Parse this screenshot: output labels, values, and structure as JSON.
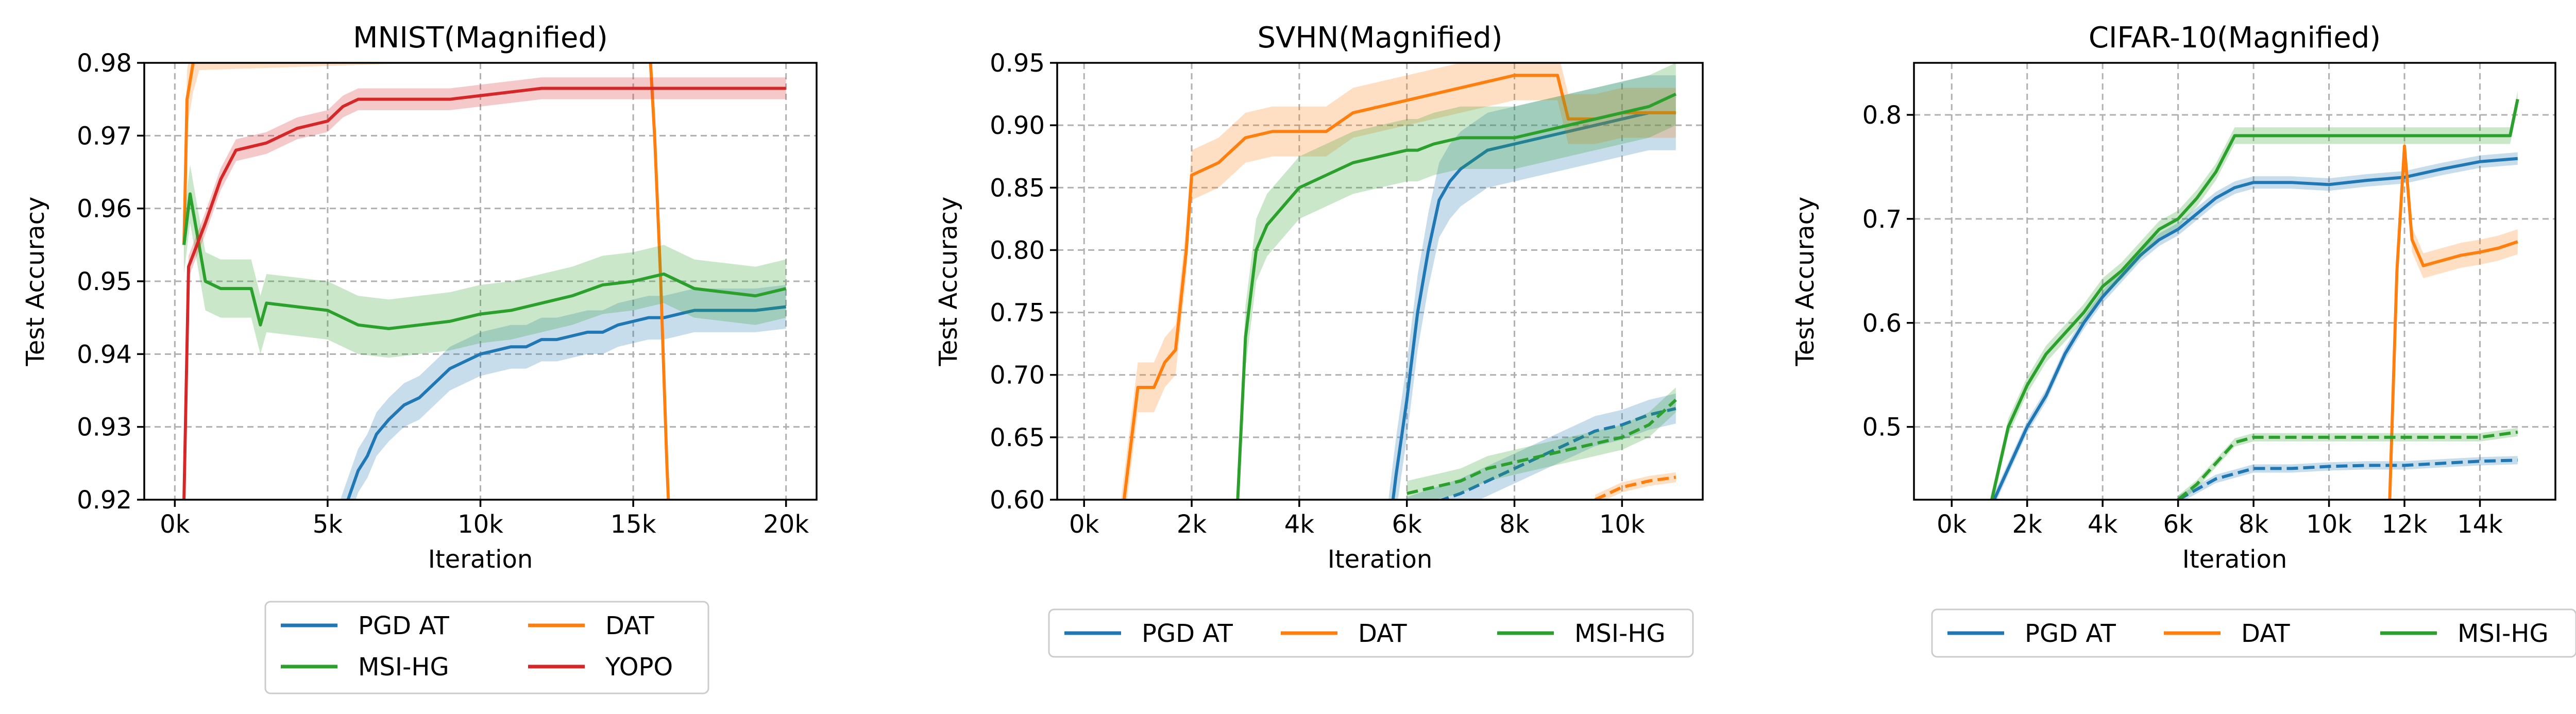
{
  "colors": {
    "PGD AT": "#1f77b4",
    "DAT": "#ff7f0e",
    "MSI-HG": "#2ca02c",
    "YOPO": "#d62728"
  },
  "chart_data": [
    {
      "type": "line",
      "title": "MNIST(Magnified)",
      "xlabel": "Iteration",
      "ylabel": "Test Accuracy",
      "xlim": [
        -1000,
        21000
      ],
      "ylim": [
        0.92,
        0.98
      ],
      "xticks": [
        0,
        5000,
        10000,
        15000,
        20000
      ],
      "xtick_labels": [
        "0k",
        "5k",
        "10k",
        "15k",
        "20k"
      ],
      "yticks": [
        0.92,
        0.93,
        0.94,
        0.95,
        0.96,
        0.97,
        0.98
      ],
      "ytick_labels": [
        "0.92",
        "0.93",
        "0.94",
        "0.95",
        "0.96",
        "0.97",
        "0.98"
      ],
      "grid": true,
      "legend": {
        "placement": "below",
        "columns": 2,
        "entries": [
          "PGD AT",
          "DAT",
          "MSI-HG",
          "YOPO"
        ]
      },
      "series": [
        {
          "name": "PGD AT",
          "style": "solid",
          "band": 0.003,
          "x": [
            5000,
            5500,
            6000,
            6300,
            6600,
            7000,
            7500,
            8000,
            8500,
            9000,
            9500,
            10000,
            10500,
            11000,
            11500,
            12000,
            12500,
            13000,
            13500,
            14000,
            14500,
            15000,
            15500,
            16000,
            16500,
            17000,
            18000,
            19000,
            20000
          ],
          "y": [
            0.912,
            0.918,
            0.924,
            0.926,
            0.929,
            0.931,
            0.933,
            0.934,
            0.936,
            0.938,
            0.939,
            0.94,
            0.9405,
            0.941,
            0.941,
            0.942,
            0.942,
            0.9425,
            0.943,
            0.943,
            0.944,
            0.9445,
            0.945,
            0.945,
            0.9455,
            0.946,
            0.946,
            0.946,
            0.9465
          ]
        },
        {
          "name": "DAT",
          "style": "solid",
          "band": 0.004,
          "x": [
            300,
            400,
            600,
            800,
            15500,
            15700,
            15900,
            16100,
            16300
          ],
          "y": [
            0.955,
            0.975,
            0.98,
            0.983,
            0.985,
            0.97,
            0.95,
            0.925,
            0.905
          ]
        },
        {
          "name": "MSI-HG",
          "style": "solid",
          "band": 0.004,
          "x": [
            300,
            500,
            1000,
            1500,
            2500,
            2800,
            3000,
            4000,
            5000,
            6000,
            7000,
            8000,
            9000,
            10000,
            11000,
            12000,
            13000,
            14000,
            15000,
            16000,
            17000,
            18000,
            19000,
            20000
          ],
          "y": [
            0.955,
            0.962,
            0.95,
            0.949,
            0.949,
            0.944,
            0.947,
            0.9465,
            0.946,
            0.944,
            0.9435,
            0.944,
            0.9445,
            0.9455,
            0.946,
            0.947,
            0.948,
            0.9495,
            0.95,
            0.951,
            0.949,
            0.9485,
            0.948,
            0.949
          ]
        },
        {
          "name": "YOPO",
          "style": "solid",
          "band": 0.0015,
          "x": [
            300,
            450,
            1000,
            1500,
            2000,
            2500,
            3000,
            3500,
            4000,
            4500,
            5000,
            5500,
            6000,
            7000,
            8000,
            9000,
            10000,
            11000,
            12000,
            13000,
            14000,
            15000,
            16000,
            17000,
            18000,
            19000,
            20000
          ],
          "y": [
            0.92,
            0.952,
            0.958,
            0.964,
            0.968,
            0.9685,
            0.969,
            0.97,
            0.971,
            0.9715,
            0.972,
            0.974,
            0.975,
            0.975,
            0.975,
            0.975,
            0.9755,
            0.976,
            0.9765,
            0.9765,
            0.9765,
            0.9765,
            0.9765,
            0.9765,
            0.9765,
            0.9765,
            0.9765
          ]
        }
      ]
    },
    {
      "type": "line",
      "title": "SVHN(Magnified)",
      "xlabel": "Iteration",
      "ylabel": "Test Accuracy",
      "xlim": [
        -500,
        11500
      ],
      "ylim": [
        0.6,
        0.95
      ],
      "xticks": [
        0,
        2000,
        4000,
        6000,
        8000,
        10000
      ],
      "xtick_labels": [
        "0k",
        "2k",
        "4k",
        "6k",
        "8k",
        "10k"
      ],
      "yticks": [
        0.6,
        0.65,
        0.7,
        0.75,
        0.8,
        0.85,
        0.9,
        0.95
      ],
      "ytick_labels": [
        "0.60",
        "0.65",
        "0.70",
        "0.75",
        "0.80",
        "0.85",
        "0.90",
        "0.95"
      ],
      "grid": true,
      "legend": {
        "placement": "below",
        "columns": 3,
        "entries": [
          "PGD AT",
          "DAT",
          "MSI-HG"
        ]
      },
      "series": [
        {
          "name": "PGD AT",
          "style": "solid",
          "band": 0.03,
          "x": [
            5600,
            5800,
            6000,
            6200,
            6400,
            6600,
            6800,
            7000,
            7500,
            8000,
            8500,
            9000,
            9500,
            10000,
            10500,
            11000
          ],
          "y": [
            0.55,
            0.62,
            0.68,
            0.75,
            0.8,
            0.84,
            0.855,
            0.865,
            0.88,
            0.885,
            0.89,
            0.895,
            0.9,
            0.905,
            0.91,
            0.91
          ]
        },
        {
          "name": "PGD AT",
          "style": "dashed",
          "band": 0.012,
          "x": [
            6000,
            7000,
            8000,
            8500,
            9000,
            9500,
            10000,
            10500,
            11000
          ],
          "y": [
            0.59,
            0.605,
            0.625,
            0.635,
            0.645,
            0.655,
            0.66,
            0.668,
            0.673
          ]
        },
        {
          "name": "DAT",
          "style": "solid",
          "band": 0.02,
          "x": [
            600,
            1000,
            1300,
            1500,
            1700,
            1900,
            2000,
            2500,
            3000,
            3500,
            4000,
            4500,
            5000,
            5500,
            6000,
            6500,
            7000,
            7500,
            8000,
            8500,
            8800,
            9000,
            9500,
            10000,
            10500,
            11000
          ],
          "y": [
            0.55,
            0.69,
            0.69,
            0.71,
            0.72,
            0.8,
            0.86,
            0.87,
            0.89,
            0.895,
            0.895,
            0.895,
            0.91,
            0.915,
            0.92,
            0.925,
            0.93,
            0.935,
            0.94,
            0.94,
            0.94,
            0.905,
            0.905,
            0.91,
            0.91,
            0.91
          ]
        },
        {
          "name": "DAT",
          "style": "dashed",
          "band": 0.004,
          "x": [
            9500,
            10000,
            10500,
            11000
          ],
          "y": [
            0.6,
            0.61,
            0.615,
            0.618
          ]
        },
        {
          "name": "MSI-HG",
          "style": "solid",
          "band": 0.025,
          "x": [
            2800,
            3000,
            3200,
            3400,
            3600,
            3800,
            4000,
            4500,
            5000,
            5500,
            6000,
            6200,
            6500,
            7000,
            7500,
            8000,
            8500,
            9000,
            9500,
            10000,
            10500,
            11000
          ],
          "y": [
            0.55,
            0.73,
            0.8,
            0.82,
            0.83,
            0.84,
            0.85,
            0.86,
            0.87,
            0.875,
            0.88,
            0.88,
            0.885,
            0.89,
            0.89,
            0.89,
            0.895,
            0.9,
            0.905,
            0.91,
            0.915,
            0.925
          ]
        },
        {
          "name": "MSI-HG",
          "style": "dashed",
          "band": 0.01,
          "x": [
            6000,
            6500,
            7000,
            7500,
            8000,
            8500,
            9000,
            9500,
            10000,
            10500,
            11000
          ],
          "y": [
            0.605,
            0.61,
            0.615,
            0.625,
            0.63,
            0.635,
            0.64,
            0.645,
            0.65,
            0.66,
            0.68
          ]
        }
      ]
    },
    {
      "type": "line",
      "title": "CIFAR-10(Magnified)",
      "xlabel": "Iteration",
      "ylabel": "Test Accuracy",
      "xlim": [
        -1000,
        16000
      ],
      "ylim": [
        0.43,
        0.85
      ],
      "xticks": [
        0,
        2000,
        4000,
        6000,
        8000,
        10000,
        12000,
        14000
      ],
      "xtick_labels": [
        "0k",
        "2k",
        "4k",
        "6k",
        "8k",
        "10k",
        "12k",
        "14k"
      ],
      "yticks": [
        0.5,
        0.6,
        0.7,
        0.8
      ],
      "ytick_labels": [
        "0.5",
        "0.6",
        "0.7",
        "0.8"
      ],
      "grid": true,
      "legend": {
        "placement": "below",
        "columns": 3,
        "entries": [
          "PGD AT",
          "DAT",
          "MSI-HG"
        ]
      },
      "series": [
        {
          "name": "PGD AT",
          "style": "solid",
          "band": 0.006,
          "x": [
            1000,
            1500,
            2000,
            2500,
            3000,
            3500,
            4000,
            4500,
            5000,
            5500,
            6000,
            6500,
            7000,
            7500,
            8000,
            9000,
            10000,
            11000,
            12000,
            13000,
            14000,
            15000
          ],
          "y": [
            0.42,
            0.46,
            0.5,
            0.53,
            0.57,
            0.6,
            0.625,
            0.645,
            0.665,
            0.68,
            0.69,
            0.705,
            0.72,
            0.73,
            0.735,
            0.735,
            0.733,
            0.737,
            0.74,
            0.748,
            0.755,
            0.758
          ]
        },
        {
          "name": "PGD AT",
          "style": "dashed",
          "band": 0.004,
          "x": [
            6000,
            6500,
            7000,
            7500,
            8000,
            9000,
            10000,
            11000,
            12000,
            13000,
            14000,
            15000
          ],
          "y": [
            0.43,
            0.44,
            0.45,
            0.455,
            0.46,
            0.46,
            0.462,
            0.463,
            0.463,
            0.465,
            0.467,
            0.468
          ]
        },
        {
          "name": "DAT",
          "style": "solid",
          "band": 0.012,
          "x": [
            11600,
            11800,
            12000,
            12200,
            12500,
            13000,
            13500,
            14000,
            14500,
            15000
          ],
          "y": [
            0.42,
            0.65,
            0.77,
            0.68,
            0.655,
            0.66,
            0.665,
            0.668,
            0.672,
            0.678
          ]
        },
        {
          "name": "MSI-HG",
          "style": "solid",
          "band": 0.008,
          "x": [
            1000,
            1500,
            2000,
            2500,
            3000,
            3500,
            4000,
            4500,
            5000,
            5500,
            6000,
            6500,
            7000,
            7500,
            8000,
            9000,
            10000,
            11000,
            12000,
            13000,
            14000,
            14800,
            15000
          ],
          "y": [
            0.42,
            0.5,
            0.54,
            0.57,
            0.59,
            0.61,
            0.635,
            0.65,
            0.67,
            0.69,
            0.7,
            0.72,
            0.745,
            0.78,
            0.78,
            0.78,
            0.78,
            0.78,
            0.78,
            0.78,
            0.78,
            0.78,
            0.815
          ]
        },
        {
          "name": "MSI-HG",
          "style": "dashed",
          "band": 0.004,
          "x": [
            6000,
            6500,
            7000,
            7500,
            8000,
            9000,
            10000,
            11000,
            12000,
            13000,
            14000,
            15000
          ],
          "y": [
            0.43,
            0.445,
            0.465,
            0.485,
            0.49,
            0.49,
            0.49,
            0.49,
            0.49,
            0.49,
            0.49,
            0.495
          ]
        }
      ]
    }
  ]
}
